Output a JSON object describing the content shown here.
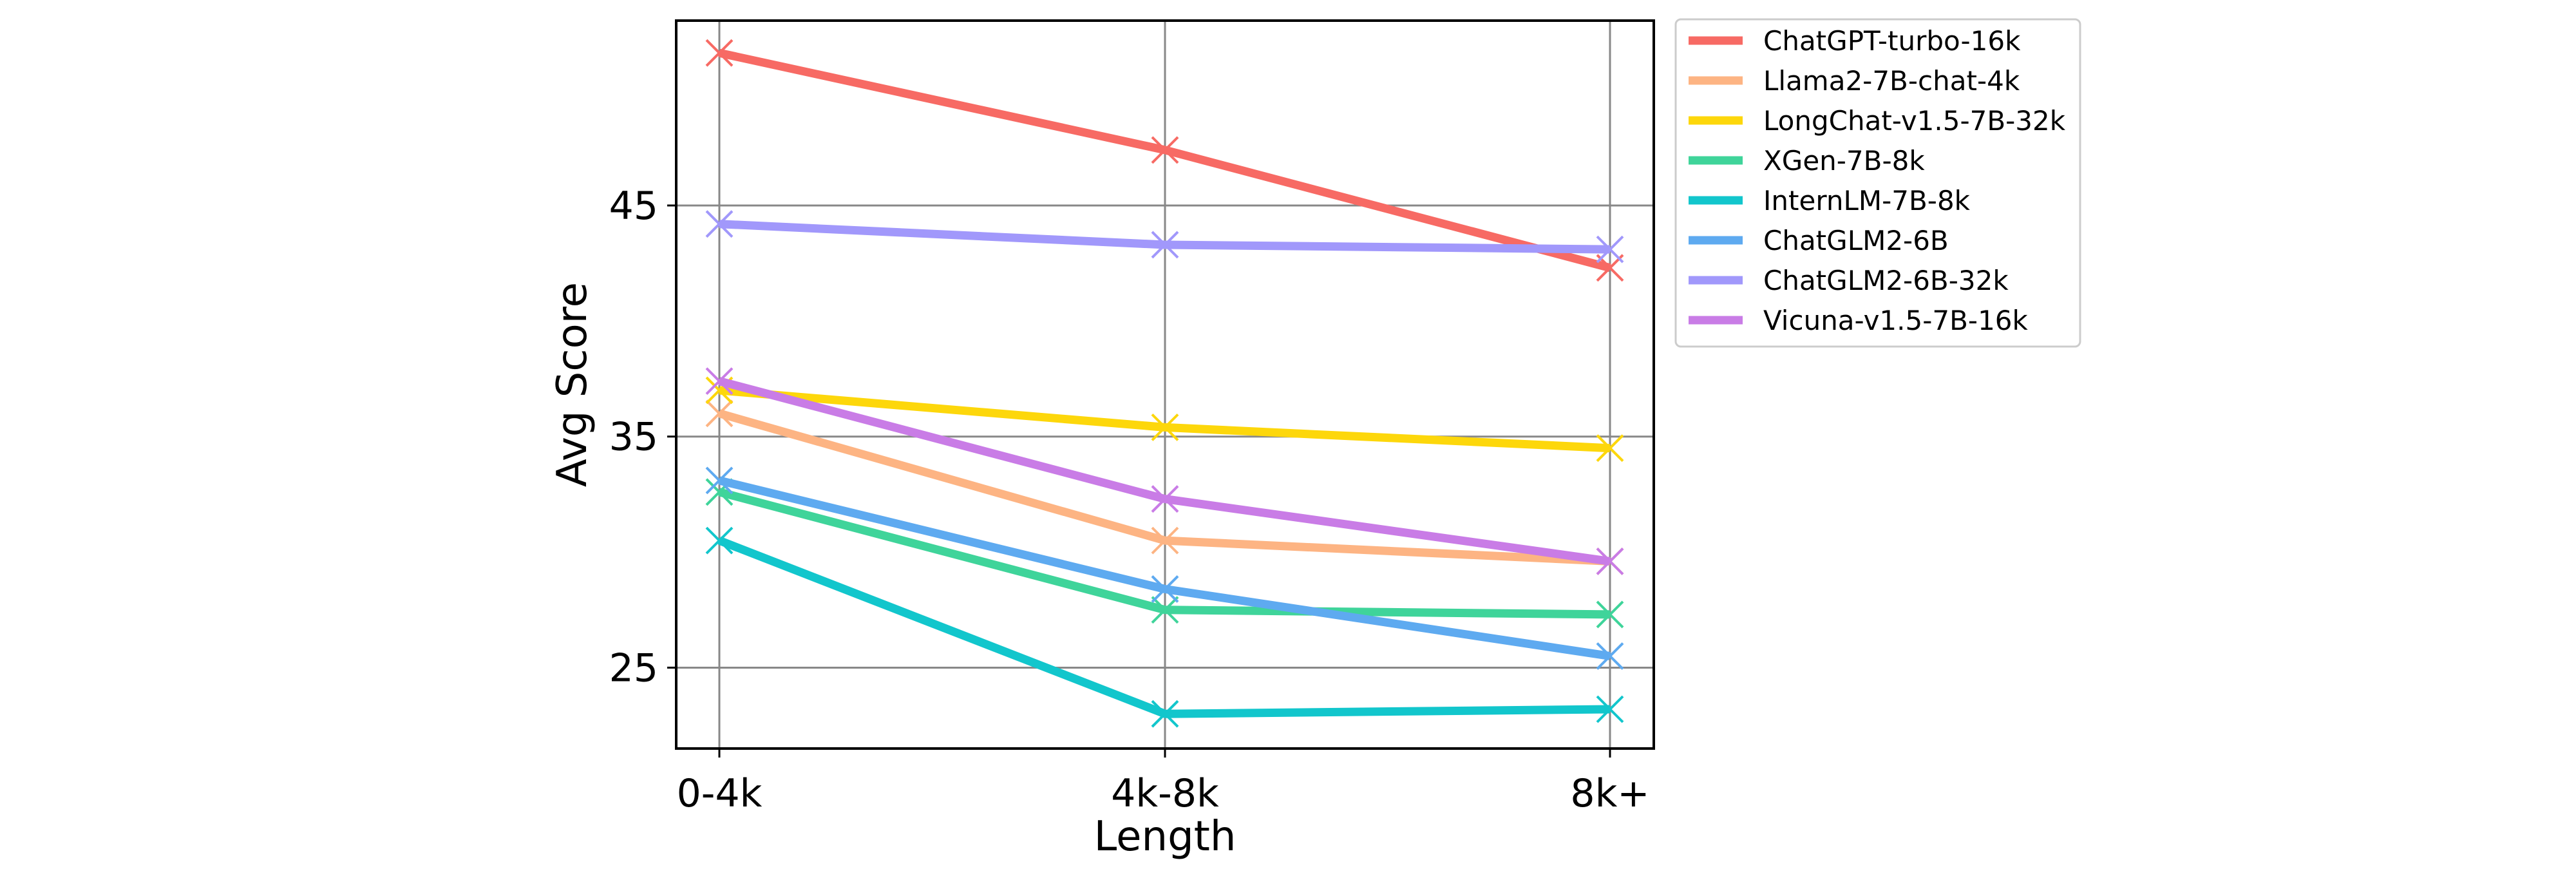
{
  "chart_data": {
    "type": "line",
    "title": "",
    "xlabel": "Length",
    "ylabel": "Avg Score",
    "categories": [
      "0-4k",
      "4k-8k",
      "8k+"
    ],
    "ylim": [
      21.5,
      53
    ],
    "yticks": [
      25,
      35,
      45
    ],
    "grid": true,
    "legend_position": "outside-right-top",
    "marker": "x",
    "series": [
      {
        "name": "ChatGPT-turbo-16k",
        "color": "#f76a64",
        "values": [
          51.6,
          47.4,
          42.3
        ]
      },
      {
        "name": "Llama2-7B-chat-4k",
        "color": "#fdb483",
        "values": [
          36.0,
          30.5,
          29.6
        ]
      },
      {
        "name": "LongChat-v1.5-7B-32k",
        "color": "#fdd70b",
        "values": [
          37.0,
          35.4,
          34.5
        ]
      },
      {
        "name": "XGen-7B-8k",
        "color": "#3fd49a",
        "values": [
          32.6,
          27.5,
          27.3
        ]
      },
      {
        "name": "InternLM-7B-8k",
        "color": "#12c6cc",
        "values": [
          30.5,
          23.0,
          23.2
        ]
      },
      {
        "name": "ChatGLM2-6B",
        "color": "#5eaaf0",
        "values": [
          33.1,
          28.4,
          25.5
        ]
      },
      {
        "name": "ChatGLM2-6B-32k",
        "color": "#a198fb",
        "values": [
          44.2,
          43.3,
          43.1
        ]
      },
      {
        "name": "Vicuna-v1.5-7B-16k",
        "color": "#c97ce6",
        "values": [
          37.4,
          32.3,
          29.6
        ]
      }
    ]
  }
}
